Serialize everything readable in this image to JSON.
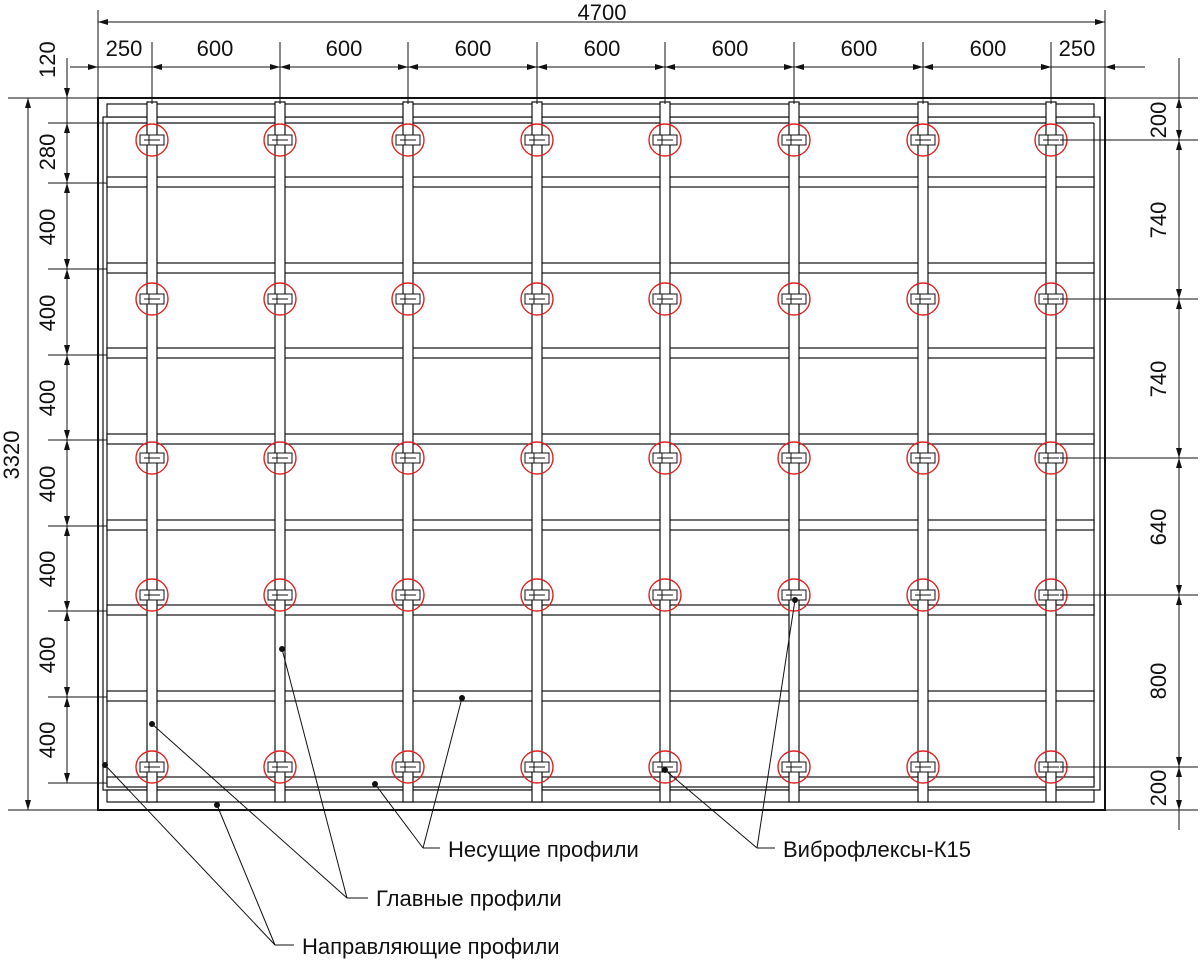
{
  "dimensions": {
    "total_width": "4700",
    "top_left_offset": "120",
    "top_segments": [
      "250",
      "600",
      "600",
      "600",
      "600",
      "600",
      "600",
      "600",
      "250"
    ],
    "total_height": "3320",
    "left_segments": [
      "280",
      "400",
      "400",
      "400",
      "400",
      "400",
      "400",
      "400"
    ],
    "right_segments": [
      "200",
      "740",
      "740",
      "640",
      "800",
      "200"
    ]
  },
  "labels": {
    "bearing": "Несущие профили",
    "vibro": "Виброфлексы-К15",
    "main": "Главные профили",
    "guide": "Направляющие профили"
  },
  "colors": {
    "line": "#111111",
    "mount_ring": "#e02020"
  }
}
